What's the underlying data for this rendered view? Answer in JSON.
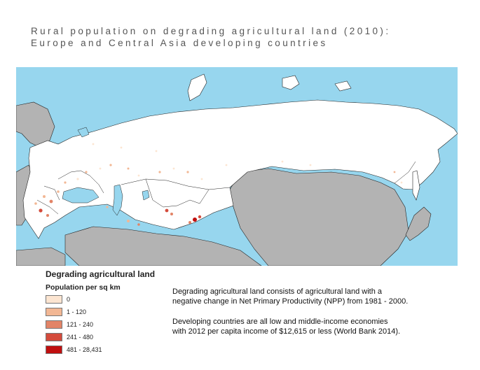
{
  "title": {
    "line1": "Rural population on degrading agricultural land (2010):",
    "line2": "Europe and Central Asia developing countries"
  },
  "map": {
    "colors": {
      "ocean": "#97d6ee",
      "land_other": "#b3b3b3",
      "land_region": "#ffffff",
      "border": "#222222"
    }
  },
  "legend": {
    "title": "Degrading agricultural land",
    "subtitle": "Population per sq km",
    "items": [
      {
        "label": "0",
        "color": "#fce5d1"
      },
      {
        "label": "1 - 120",
        "color": "#f2b794"
      },
      {
        "label": "121 - 240",
        "color": "#e28467"
      },
      {
        "label": "241 - 480",
        "color": "#d44b3c"
      },
      {
        "label": "481 - 28,431",
        "color": "#c00f0f"
      }
    ]
  },
  "notes": {
    "p1_line1": "Degrading agricultural land consists of agricultural land with a",
    "p1_line2": "negative change in Net Primary Productivity (NPP) from 1981 - 2000.",
    "p2_line1": "Developing countries are all low and middle-income economies",
    "p2_line2": "with 2012 per capita income of $12,615 or less (World Bank 2014)."
  }
}
